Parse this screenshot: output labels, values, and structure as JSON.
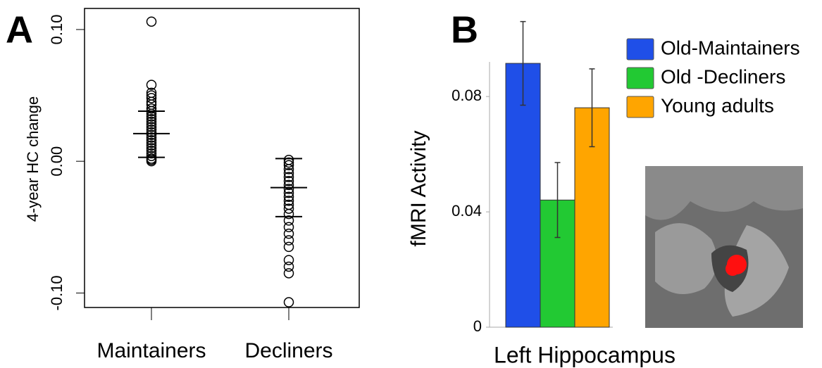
{
  "chart_data": [
    {
      "type": "strip",
      "panel_label": "A",
      "ylabel": "4-year HC change",
      "categories": [
        "Maintainers",
        "Decliners"
      ],
      "values": [
        [
          0.106,
          0.058,
          0.052,
          0.05,
          0.048,
          0.045,
          0.043,
          0.04,
          0.038,
          0.036,
          0.034,
          0.032,
          0.03,
          0.028,
          0.026,
          0.024,
          0.022,
          0.02,
          0.018,
          0.016,
          0.014,
          0.012,
          0.01,
          0.008,
          0.006,
          0.004,
          0.002,
          0.001,
          0
        ],
        [
          0.001,
          -0.001,
          -0.003,
          -0.006,
          -0.009,
          -0.012,
          -0.015,
          -0.018,
          -0.021,
          -0.024,
          -0.027,
          -0.03,
          -0.033,
          -0.036,
          -0.04,
          -0.045,
          -0.05,
          -0.055,
          -0.06,
          -0.065,
          -0.075,
          -0.08,
          -0.085,
          -0.107
        ]
      ],
      "means": [
        0.021,
        -0.02
      ],
      "upper": [
        0.038,
        0.002
      ],
      "lower": [
        0.003,
        -0.042
      ],
      "color": "#000000",
      "ylim": [
        -0.111,
        0.116
      ],
      "yticks": [
        {
          "value": -0.1,
          "label": "-0.10"
        },
        {
          "value": 0,
          "label": "0.00"
        },
        {
          "value": 0.1,
          "label": "0.10"
        }
      ]
    },
    {
      "type": "bar",
      "panel_label": "B",
      "ylabel": "fMRI Activity",
      "xlabel": "Left Hippocampus",
      "series": [
        {
          "name": "Old-Maintainers",
          "color": "#1f4fe8",
          "values": [
            0.0915
          ],
          "errors": [
            0.0145
          ]
        },
        {
          "name": "Old -Decliners",
          "color": "#22c933",
          "values": [
            0.0441
          ],
          "errors": [
            0.013
          ]
        },
        {
          "name": "Young adults",
          "color": "#ffa500",
          "values": [
            0.0761
          ],
          "errors": [
            0.0135
          ]
        }
      ],
      "ylim": [
        0,
        0.092
      ],
      "yticks": [
        0,
        0.04,
        0.08
      ]
    }
  ]
}
